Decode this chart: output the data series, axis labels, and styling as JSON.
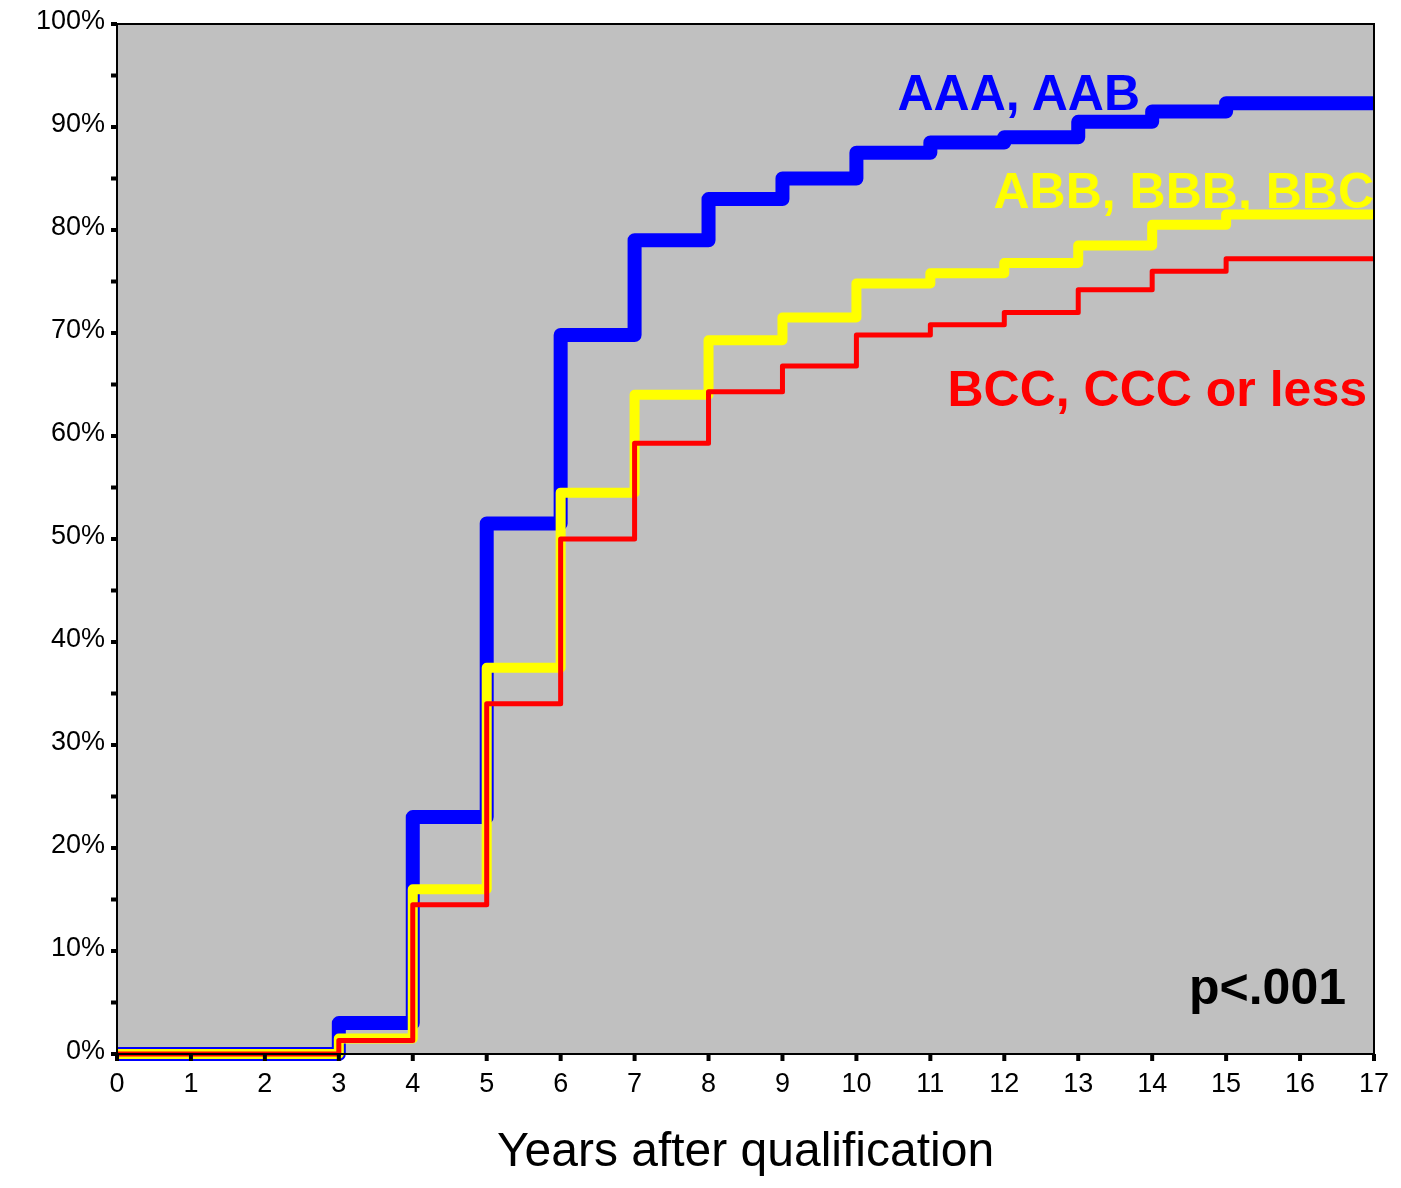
{
  "chart_data": {
    "type": "step",
    "xlabel": "Years after qualification",
    "xlim": [
      0,
      17
    ],
    "xticks": [
      0,
      1,
      2,
      3,
      4,
      5,
      6,
      7,
      8,
      9,
      10,
      11,
      12,
      13,
      14,
      15,
      16,
      17
    ],
    "ylim": [
      0,
      100
    ],
    "yticks": [
      {
        "value": 0,
        "label": "0%"
      },
      {
        "value": 5,
        "label": null
      },
      {
        "value": 10,
        "label": "10%"
      },
      {
        "value": 15,
        "label": null
      },
      {
        "value": 20,
        "label": "20%"
      },
      {
        "value": 25,
        "label": null
      },
      {
        "value": 30,
        "label": "30%"
      },
      {
        "value": 35,
        "label": null
      },
      {
        "value": 40,
        "label": "40%"
      },
      {
        "value": 45,
        "label": null
      },
      {
        "value": 50,
        "label": "50%"
      },
      {
        "value": 55,
        "label": null
      },
      {
        "value": 60,
        "label": "60%"
      },
      {
        "value": 65,
        "label": null
      },
      {
        "value": 70,
        "label": "70%"
      },
      {
        "value": 75,
        "label": null
      },
      {
        "value": 80,
        "label": "80%"
      },
      {
        "value": 85,
        "label": null
      },
      {
        "value": 90,
        "label": "90%"
      },
      {
        "value": 95,
        "label": null
      },
      {
        "value": 100,
        "label": "100%"
      }
    ],
    "x": [
      0,
      3,
      4,
      5,
      6,
      7,
      8,
      9,
      10,
      11,
      12,
      13,
      14,
      15,
      17
    ],
    "series": [
      {
        "name": "AAA, AAB",
        "color": "#0000ff",
        "values": [
          0,
          3,
          23,
          51.5,
          69.8,
          79,
          83,
          85,
          87.5,
          88.5,
          89,
          90.5,
          91.5,
          92.3,
          92.3
        ]
      },
      {
        "name": "ABB, BBB, BBC",
        "color": "#ffff00",
        "values": [
          0,
          1.5,
          16,
          37.5,
          54.5,
          64,
          69.3,
          71.5,
          74.8,
          75.8,
          76.8,
          78.5,
          80.5,
          81.5,
          81.5
        ]
      },
      {
        "name": "BCC, CCC or less",
        "color": "#ff0000",
        "values": [
          0,
          1.3,
          14.5,
          34,
          50,
          59.3,
          64.3,
          66.8,
          69.8,
          70.8,
          72,
          74.2,
          76,
          77.2,
          77.2
        ]
      }
    ],
    "annotations": [
      "p<.001"
    ],
    "grid": false
  }
}
